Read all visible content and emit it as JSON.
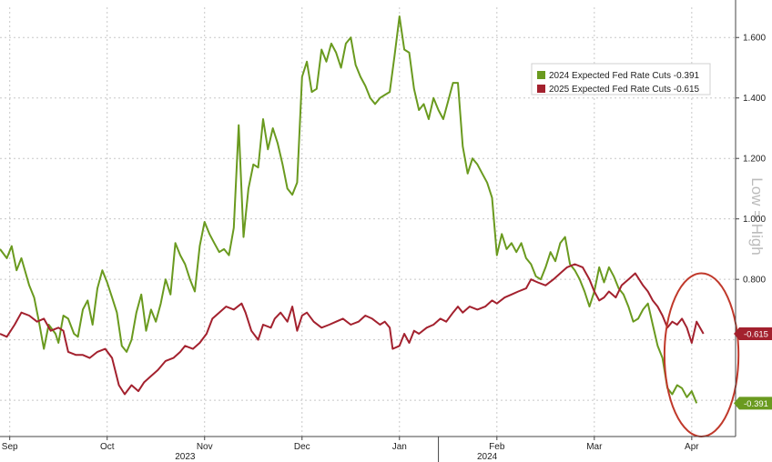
{
  "chart_data": {
    "type": "line",
    "title": "",
    "xlabel": "",
    "ylabel": "",
    "x_ticks": [
      "Sep",
      "Oct",
      "Nov",
      "Dec",
      "Jan",
      "Feb",
      "Mar",
      "Apr"
    ],
    "year_labels": [
      {
        "label": "2023",
        "month_index": 1.8
      },
      {
        "label": "2024",
        "month_index": 4.9
      }
    ],
    "year_divider_month_index": 4.4,
    "xlim": [
      -0.1,
      7.45
    ],
    "ylim": [
      0.28,
      1.7
    ],
    "y_ticks": [
      0.8,
      1.0,
      1.2,
      1.4,
      1.6
    ],
    "y_tick_labels": [
      "0.800",
      "1.000",
      "1.200",
      "1.400",
      "1.600"
    ],
    "grid": true,
    "legend_position": "top-right",
    "watermark": "Low = High",
    "highlight": {
      "type": "ellipse",
      "x_center": 7.1,
      "y_center": 0.55,
      "x_radius": 0.38,
      "y_radius": 0.27,
      "color": "#c0392b"
    },
    "series": [
      {
        "name": "2024 Expected Fed Rate Cuts",
        "legend_label": "2024 Expected Fed Rate Cuts  -0.391",
        "last_label": "-0.391",
        "color": "#6a9a1f",
        "points": [
          [
            -0.1,
            0.9
          ],
          [
            -0.03,
            0.87
          ],
          [
            0.02,
            0.91
          ],
          [
            0.07,
            0.83
          ],
          [
            0.12,
            0.87
          ],
          [
            0.2,
            0.78
          ],
          [
            0.25,
            0.74
          ],
          [
            0.3,
            0.66
          ],
          [
            0.35,
            0.57
          ],
          [
            0.4,
            0.65
          ],
          [
            0.47,
            0.62
          ],
          [
            0.5,
            0.59
          ],
          [
            0.55,
            0.68
          ],
          [
            0.6,
            0.67
          ],
          [
            0.66,
            0.62
          ],
          [
            0.7,
            0.61
          ],
          [
            0.75,
            0.7
          ],
          [
            0.8,
            0.73
          ],
          [
            0.85,
            0.65
          ],
          [
            0.9,
            0.77
          ],
          [
            0.95,
            0.83
          ],
          [
            1.0,
            0.79
          ],
          [
            1.05,
            0.74
          ],
          [
            1.1,
            0.69
          ],
          [
            1.15,
            0.58
          ],
          [
            1.2,
            0.56
          ],
          [
            1.25,
            0.6
          ],
          [
            1.3,
            0.69
          ],
          [
            1.35,
            0.75
          ],
          [
            1.4,
            0.63
          ],
          [
            1.45,
            0.7
          ],
          [
            1.5,
            0.66
          ],
          [
            1.55,
            0.72
          ],
          [
            1.6,
            0.8
          ],
          [
            1.65,
            0.75
          ],
          [
            1.7,
            0.92
          ],
          [
            1.75,
            0.88
          ],
          [
            1.8,
            0.85
          ],
          [
            1.85,
            0.8
          ],
          [
            1.9,
            0.76
          ],
          [
            1.95,
            0.91
          ],
          [
            2.0,
            0.99
          ],
          [
            2.05,
            0.95
          ],
          [
            2.1,
            0.92
          ],
          [
            2.15,
            0.89
          ],
          [
            2.2,
            0.9
          ],
          [
            2.25,
            0.88
          ],
          [
            2.3,
            0.97
          ],
          [
            2.35,
            1.31
          ],
          [
            2.4,
            0.94
          ],
          [
            2.45,
            1.1
          ],
          [
            2.5,
            1.18
          ],
          [
            2.55,
            1.17
          ],
          [
            2.6,
            1.33
          ],
          [
            2.65,
            1.23
          ],
          [
            2.7,
            1.3
          ],
          [
            2.75,
            1.25
          ],
          [
            2.8,
            1.18
          ],
          [
            2.85,
            1.1
          ],
          [
            2.9,
            1.08
          ],
          [
            2.95,
            1.12
          ],
          [
            3.0,
            1.47
          ],
          [
            3.05,
            1.52
          ],
          [
            3.1,
            1.42
          ],
          [
            3.15,
            1.43
          ],
          [
            3.2,
            1.56
          ],
          [
            3.25,
            1.52
          ],
          [
            3.3,
            1.58
          ],
          [
            3.35,
            1.55
          ],
          [
            3.4,
            1.5
          ],
          [
            3.45,
            1.58
          ],
          [
            3.5,
            1.6
          ],
          [
            3.55,
            1.51
          ],
          [
            3.6,
            1.47
          ],
          [
            3.65,
            1.44
          ],
          [
            3.7,
            1.4
          ],
          [
            3.75,
            1.38
          ],
          [
            3.8,
            1.4
          ],
          [
            3.85,
            1.41
          ],
          [
            3.9,
            1.42
          ],
          [
            3.95,
            1.54
          ],
          [
            4.0,
            1.67
          ],
          [
            4.05,
            1.56
          ],
          [
            4.1,
            1.55
          ],
          [
            4.15,
            1.43
          ],
          [
            4.2,
            1.36
          ],
          [
            4.25,
            1.38
          ],
          [
            4.3,
            1.33
          ],
          [
            4.35,
            1.4
          ],
          [
            4.4,
            1.36
          ],
          [
            4.45,
            1.33
          ],
          [
            4.5,
            1.39
          ],
          [
            4.55,
            1.45
          ],
          [
            4.6,
            1.45
          ],
          [
            4.65,
            1.24
          ],
          [
            4.7,
            1.15
          ],
          [
            4.75,
            1.2
          ],
          [
            4.8,
            1.18
          ],
          [
            4.85,
            1.15
          ],
          [
            4.9,
            1.12
          ],
          [
            4.95,
            1.07
          ],
          [
            5.0,
            0.88
          ],
          [
            5.05,
            0.95
          ],
          [
            5.1,
            0.9
          ],
          [
            5.15,
            0.92
          ],
          [
            5.2,
            0.89
          ],
          [
            5.25,
            0.92
          ],
          [
            5.3,
            0.87
          ],
          [
            5.35,
            0.85
          ],
          [
            5.4,
            0.81
          ],
          [
            5.45,
            0.8
          ],
          [
            5.5,
            0.84
          ],
          [
            5.55,
            0.89
          ],
          [
            5.6,
            0.86
          ],
          [
            5.65,
            0.92
          ],
          [
            5.7,
            0.94
          ],
          [
            5.75,
            0.85
          ],
          [
            5.8,
            0.83
          ],
          [
            5.85,
            0.8
          ],
          [
            5.9,
            0.76
          ],
          [
            5.95,
            0.71
          ],
          [
            6.0,
            0.76
          ],
          [
            6.05,
            0.84
          ],
          [
            6.1,
            0.79
          ],
          [
            6.15,
            0.84
          ],
          [
            6.2,
            0.81
          ],
          [
            6.25,
            0.77
          ],
          [
            6.3,
            0.75
          ],
          [
            6.35,
            0.71
          ],
          [
            6.4,
            0.66
          ],
          [
            6.45,
            0.67
          ],
          [
            6.5,
            0.7
          ],
          [
            6.55,
            0.72
          ],
          [
            6.6,
            0.65
          ],
          [
            6.65,
            0.58
          ],
          [
            6.7,
            0.54
          ],
          [
            6.75,
            0.44
          ],
          [
            6.8,
            0.42
          ],
          [
            6.85,
            0.45
          ],
          [
            6.9,
            0.44
          ],
          [
            6.95,
            0.41
          ],
          [
            7.0,
            0.43
          ],
          [
            7.05,
            0.39
          ]
        ]
      },
      {
        "name": "2025 Expected Fed Rate Cuts",
        "legend_label": "2025 Expected Fed Rate Cuts  -0.615",
        "last_label": "-0.615",
        "color": "#a3212e",
        "points": [
          [
            -0.1,
            0.62
          ],
          [
            -0.03,
            0.61
          ],
          [
            0.05,
            0.65
          ],
          [
            0.12,
            0.69
          ],
          [
            0.2,
            0.68
          ],
          [
            0.28,
            0.66
          ],
          [
            0.35,
            0.67
          ],
          [
            0.42,
            0.63
          ],
          [
            0.5,
            0.64
          ],
          [
            0.55,
            0.63
          ],
          [
            0.6,
            0.56
          ],
          [
            0.68,
            0.55
          ],
          [
            0.75,
            0.55
          ],
          [
            0.82,
            0.54
          ],
          [
            0.9,
            0.56
          ],
          [
            0.98,
            0.57
          ],
          [
            1.05,
            0.54
          ],
          [
            1.12,
            0.45
          ],
          [
            1.18,
            0.42
          ],
          [
            1.25,
            0.45
          ],
          [
            1.32,
            0.43
          ],
          [
            1.38,
            0.46
          ],
          [
            1.45,
            0.48
          ],
          [
            1.52,
            0.5
          ],
          [
            1.6,
            0.53
          ],
          [
            1.68,
            0.54
          ],
          [
            1.75,
            0.56
          ],
          [
            1.8,
            0.58
          ],
          [
            1.88,
            0.57
          ],
          [
            1.95,
            0.59
          ],
          [
            2.02,
            0.62
          ],
          [
            2.08,
            0.67
          ],
          [
            2.15,
            0.69
          ],
          [
            2.22,
            0.71
          ],
          [
            2.3,
            0.7
          ],
          [
            2.38,
            0.72
          ],
          [
            2.42,
            0.69
          ],
          [
            2.48,
            0.63
          ],
          [
            2.55,
            0.6
          ],
          [
            2.6,
            0.65
          ],
          [
            2.68,
            0.64
          ],
          [
            2.72,
            0.67
          ],
          [
            2.78,
            0.69
          ],
          [
            2.85,
            0.66
          ],
          [
            2.9,
            0.71
          ],
          [
            2.95,
            0.63
          ],
          [
            3.0,
            0.68
          ],
          [
            3.05,
            0.69
          ],
          [
            3.12,
            0.66
          ],
          [
            3.2,
            0.64
          ],
          [
            3.28,
            0.65
          ],
          [
            3.35,
            0.66
          ],
          [
            3.42,
            0.67
          ],
          [
            3.5,
            0.65
          ],
          [
            3.58,
            0.66
          ],
          [
            3.65,
            0.68
          ],
          [
            3.72,
            0.67
          ],
          [
            3.8,
            0.65
          ],
          [
            3.85,
            0.66
          ],
          [
            3.9,
            0.64
          ],
          [
            3.93,
            0.57
          ],
          [
            4.0,
            0.58
          ],
          [
            4.05,
            0.62
          ],
          [
            4.1,
            0.59
          ],
          [
            4.15,
            0.63
          ],
          [
            4.2,
            0.62
          ],
          [
            4.28,
            0.64
          ],
          [
            4.35,
            0.65
          ],
          [
            4.42,
            0.67
          ],
          [
            4.48,
            0.66
          ],
          [
            4.55,
            0.69
          ],
          [
            4.6,
            0.71
          ],
          [
            4.65,
            0.69
          ],
          [
            4.72,
            0.71
          ],
          [
            4.8,
            0.7
          ],
          [
            4.88,
            0.71
          ],
          [
            4.95,
            0.73
          ],
          [
            5.0,
            0.72
          ],
          [
            5.08,
            0.74
          ],
          [
            5.15,
            0.75
          ],
          [
            5.22,
            0.76
          ],
          [
            5.3,
            0.77
          ],
          [
            5.35,
            0.8
          ],
          [
            5.42,
            0.79
          ],
          [
            5.5,
            0.78
          ],
          [
            5.58,
            0.8
          ],
          [
            5.65,
            0.82
          ],
          [
            5.72,
            0.84
          ],
          [
            5.8,
            0.85
          ],
          [
            5.88,
            0.84
          ],
          [
            5.95,
            0.8
          ],
          [
            6.0,
            0.76
          ],
          [
            6.05,
            0.73
          ],
          [
            6.1,
            0.74
          ],
          [
            6.15,
            0.76
          ],
          [
            6.22,
            0.74
          ],
          [
            6.28,
            0.78
          ],
          [
            6.35,
            0.8
          ],
          [
            6.42,
            0.82
          ],
          [
            6.5,
            0.78
          ],
          [
            6.55,
            0.76
          ],
          [
            6.6,
            0.73
          ],
          [
            6.65,
            0.71
          ],
          [
            6.7,
            0.68
          ],
          [
            6.75,
            0.64
          ],
          [
            6.8,
            0.66
          ],
          [
            6.85,
            0.65
          ],
          [
            6.9,
            0.67
          ],
          [
            6.95,
            0.64
          ],
          [
            7.0,
            0.59
          ],
          [
            7.05,
            0.66
          ],
          [
            7.12,
            0.62
          ]
        ]
      }
    ]
  }
}
